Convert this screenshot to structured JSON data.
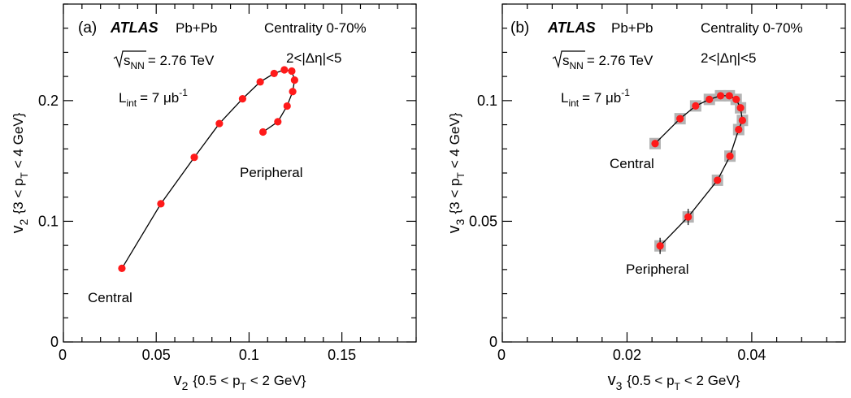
{
  "chart_data": [
    {
      "type": "line",
      "panel": "(a)",
      "experiment": "ATLAS",
      "system": "Pb+Pb",
      "centrality": "Centrality 0-70%",
      "eta_gap": "2<|Δη|<5",
      "energy": "= 2.76 TeV",
      "energy_symbol": "s",
      "energy_sub": "NN",
      "lumi": "= 7 μb",
      "lumi_symbol": "L",
      "lumi_sub": "int",
      "lumi_sup": "-1",
      "xlabel": {
        "main": "v",
        "sub": "2",
        "range": "{0.5 < p",
        "range_sub": "T",
        "range_end": "< 2 GeV}"
      },
      "ylabel": {
        "main": "v",
        "sub": "2",
        "range": "{3 < p",
        "range_sub": "T",
        "range_end": "< 4 GeV}"
      },
      "xlim": [
        0,
        0.19
      ],
      "ylim": [
        0,
        0.28
      ],
      "xticks": [
        0,
        0.05,
        0.1,
        0.15
      ],
      "xtick_labels": [
        "0",
        "0.05",
        "0.1",
        "0.15"
      ],
      "yticks": [
        0,
        0.1,
        0.2
      ],
      "ytick_labels": [
        "0",
        "0.1",
        "0.2"
      ],
      "central_label": "Central",
      "peripheral_label": "Peripheral",
      "points": [
        {
          "x": 0.0315,
          "y": 0.061
        },
        {
          "x": 0.0525,
          "y": 0.1145
        },
        {
          "x": 0.0705,
          "y": 0.153
        },
        {
          "x": 0.084,
          "y": 0.181
        },
        {
          "x": 0.0965,
          "y": 0.2015
        },
        {
          "x": 0.106,
          "y": 0.2155
        },
        {
          "x": 0.1135,
          "y": 0.2225
        },
        {
          "x": 0.119,
          "y": 0.2255
        },
        {
          "x": 0.123,
          "y": 0.2245
        },
        {
          "x": 0.1245,
          "y": 0.217
        },
        {
          "x": 0.1235,
          "y": 0.2075
        },
        {
          "x": 0.1205,
          "y": 0.1955
        },
        {
          "x": 0.1155,
          "y": 0.1825
        },
        {
          "x": 0.1075,
          "y": 0.174
        }
      ]
    },
    {
      "type": "line",
      "panel": "(b)",
      "experiment": "ATLAS",
      "system": "Pb+Pb",
      "centrality": "Centrality 0-70%",
      "eta_gap": "2<|Δη|<5",
      "energy": "= 2.76 TeV",
      "energy_symbol": "s",
      "energy_sub": "NN",
      "lumi": "= 7 μb",
      "lumi_symbol": "L",
      "lumi_sub": "int",
      "lumi_sup": "-1",
      "xlabel": {
        "main": "v",
        "sub": "3",
        "range": "{0.5 < p",
        "range_sub": "T",
        "range_end": "< 2 GeV}"
      },
      "ylabel": {
        "main": "v",
        "sub": "3",
        "range": "{3 < p",
        "range_sub": "T",
        "range_end": "< 4 GeV}"
      },
      "xlim": [
        0,
        0.055
      ],
      "ylim": [
        0,
        0.14
      ],
      "xticks": [
        0,
        0.02,
        0.04
      ],
      "xtick_labels": [
        "0",
        "0.02",
        "0.04"
      ],
      "yticks": [
        0,
        0.05,
        0.1
      ],
      "ytick_labels": [
        "0",
        "0.05",
        "0.1"
      ],
      "central_label": "Central",
      "peripheral_label": "Peripheral",
      "points": [
        {
          "x": 0.0245,
          "y": 0.0822
        },
        {
          "x": 0.0285,
          "y": 0.0925
        },
        {
          "x": 0.031,
          "y": 0.0978
        },
        {
          "x": 0.0332,
          "y": 0.1005
        },
        {
          "x": 0.035,
          "y": 0.102
        },
        {
          "x": 0.0364,
          "y": 0.102
        },
        {
          "x": 0.0375,
          "y": 0.1005
        },
        {
          "x": 0.0382,
          "y": 0.097
        },
        {
          "x": 0.0385,
          "y": 0.0918
        },
        {
          "x": 0.0379,
          "y": 0.088
        },
        {
          "x": 0.0365,
          "y": 0.077
        },
        {
          "x": 0.0345,
          "y": 0.067
        },
        {
          "x": 0.0298,
          "y": 0.0518
        },
        {
          "x": 0.0253,
          "y": 0.0398
        }
      ]
    }
  ]
}
